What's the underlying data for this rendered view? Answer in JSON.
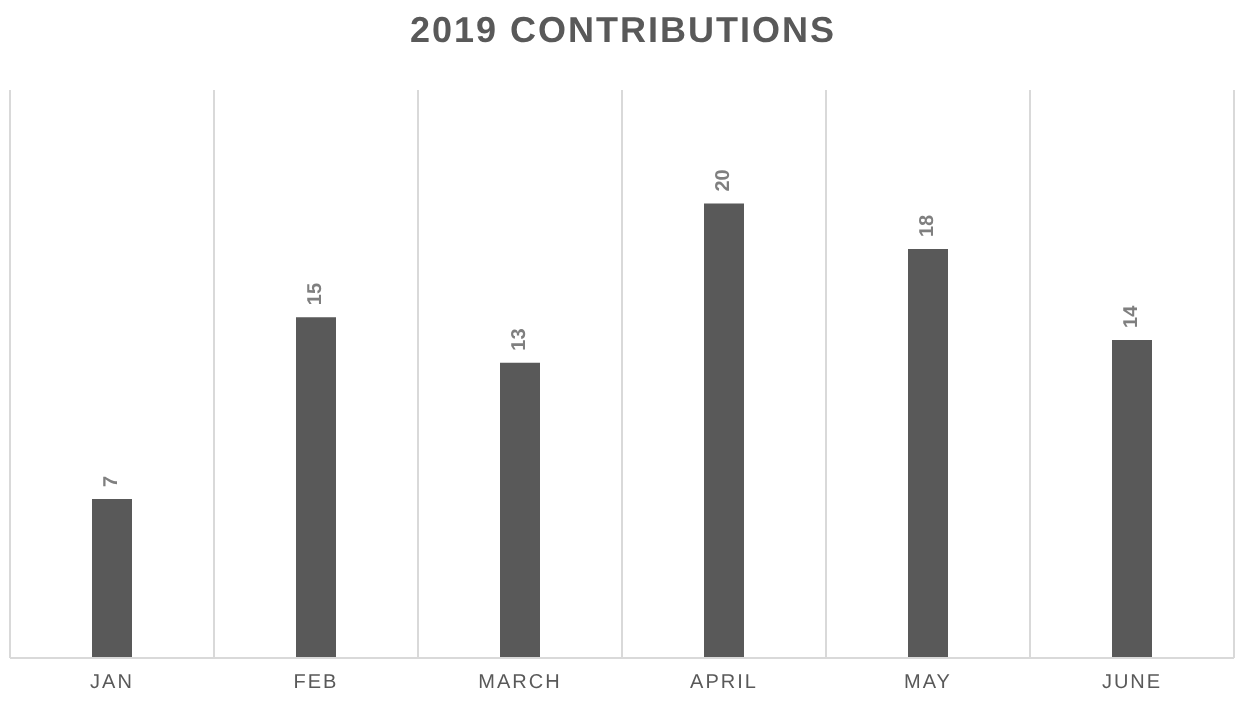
{
  "chart_data": {
    "type": "bar",
    "title": "2019 CONTRIBUTIONS",
    "categories": [
      "JAN",
      "FEB",
      "MARCH",
      "APRIL",
      "MAY",
      "JUNE"
    ],
    "values": [
      7,
      15,
      13,
      20,
      18,
      14
    ],
    "color": "#595959",
    "data_labels": true,
    "grid": "x"
  }
}
